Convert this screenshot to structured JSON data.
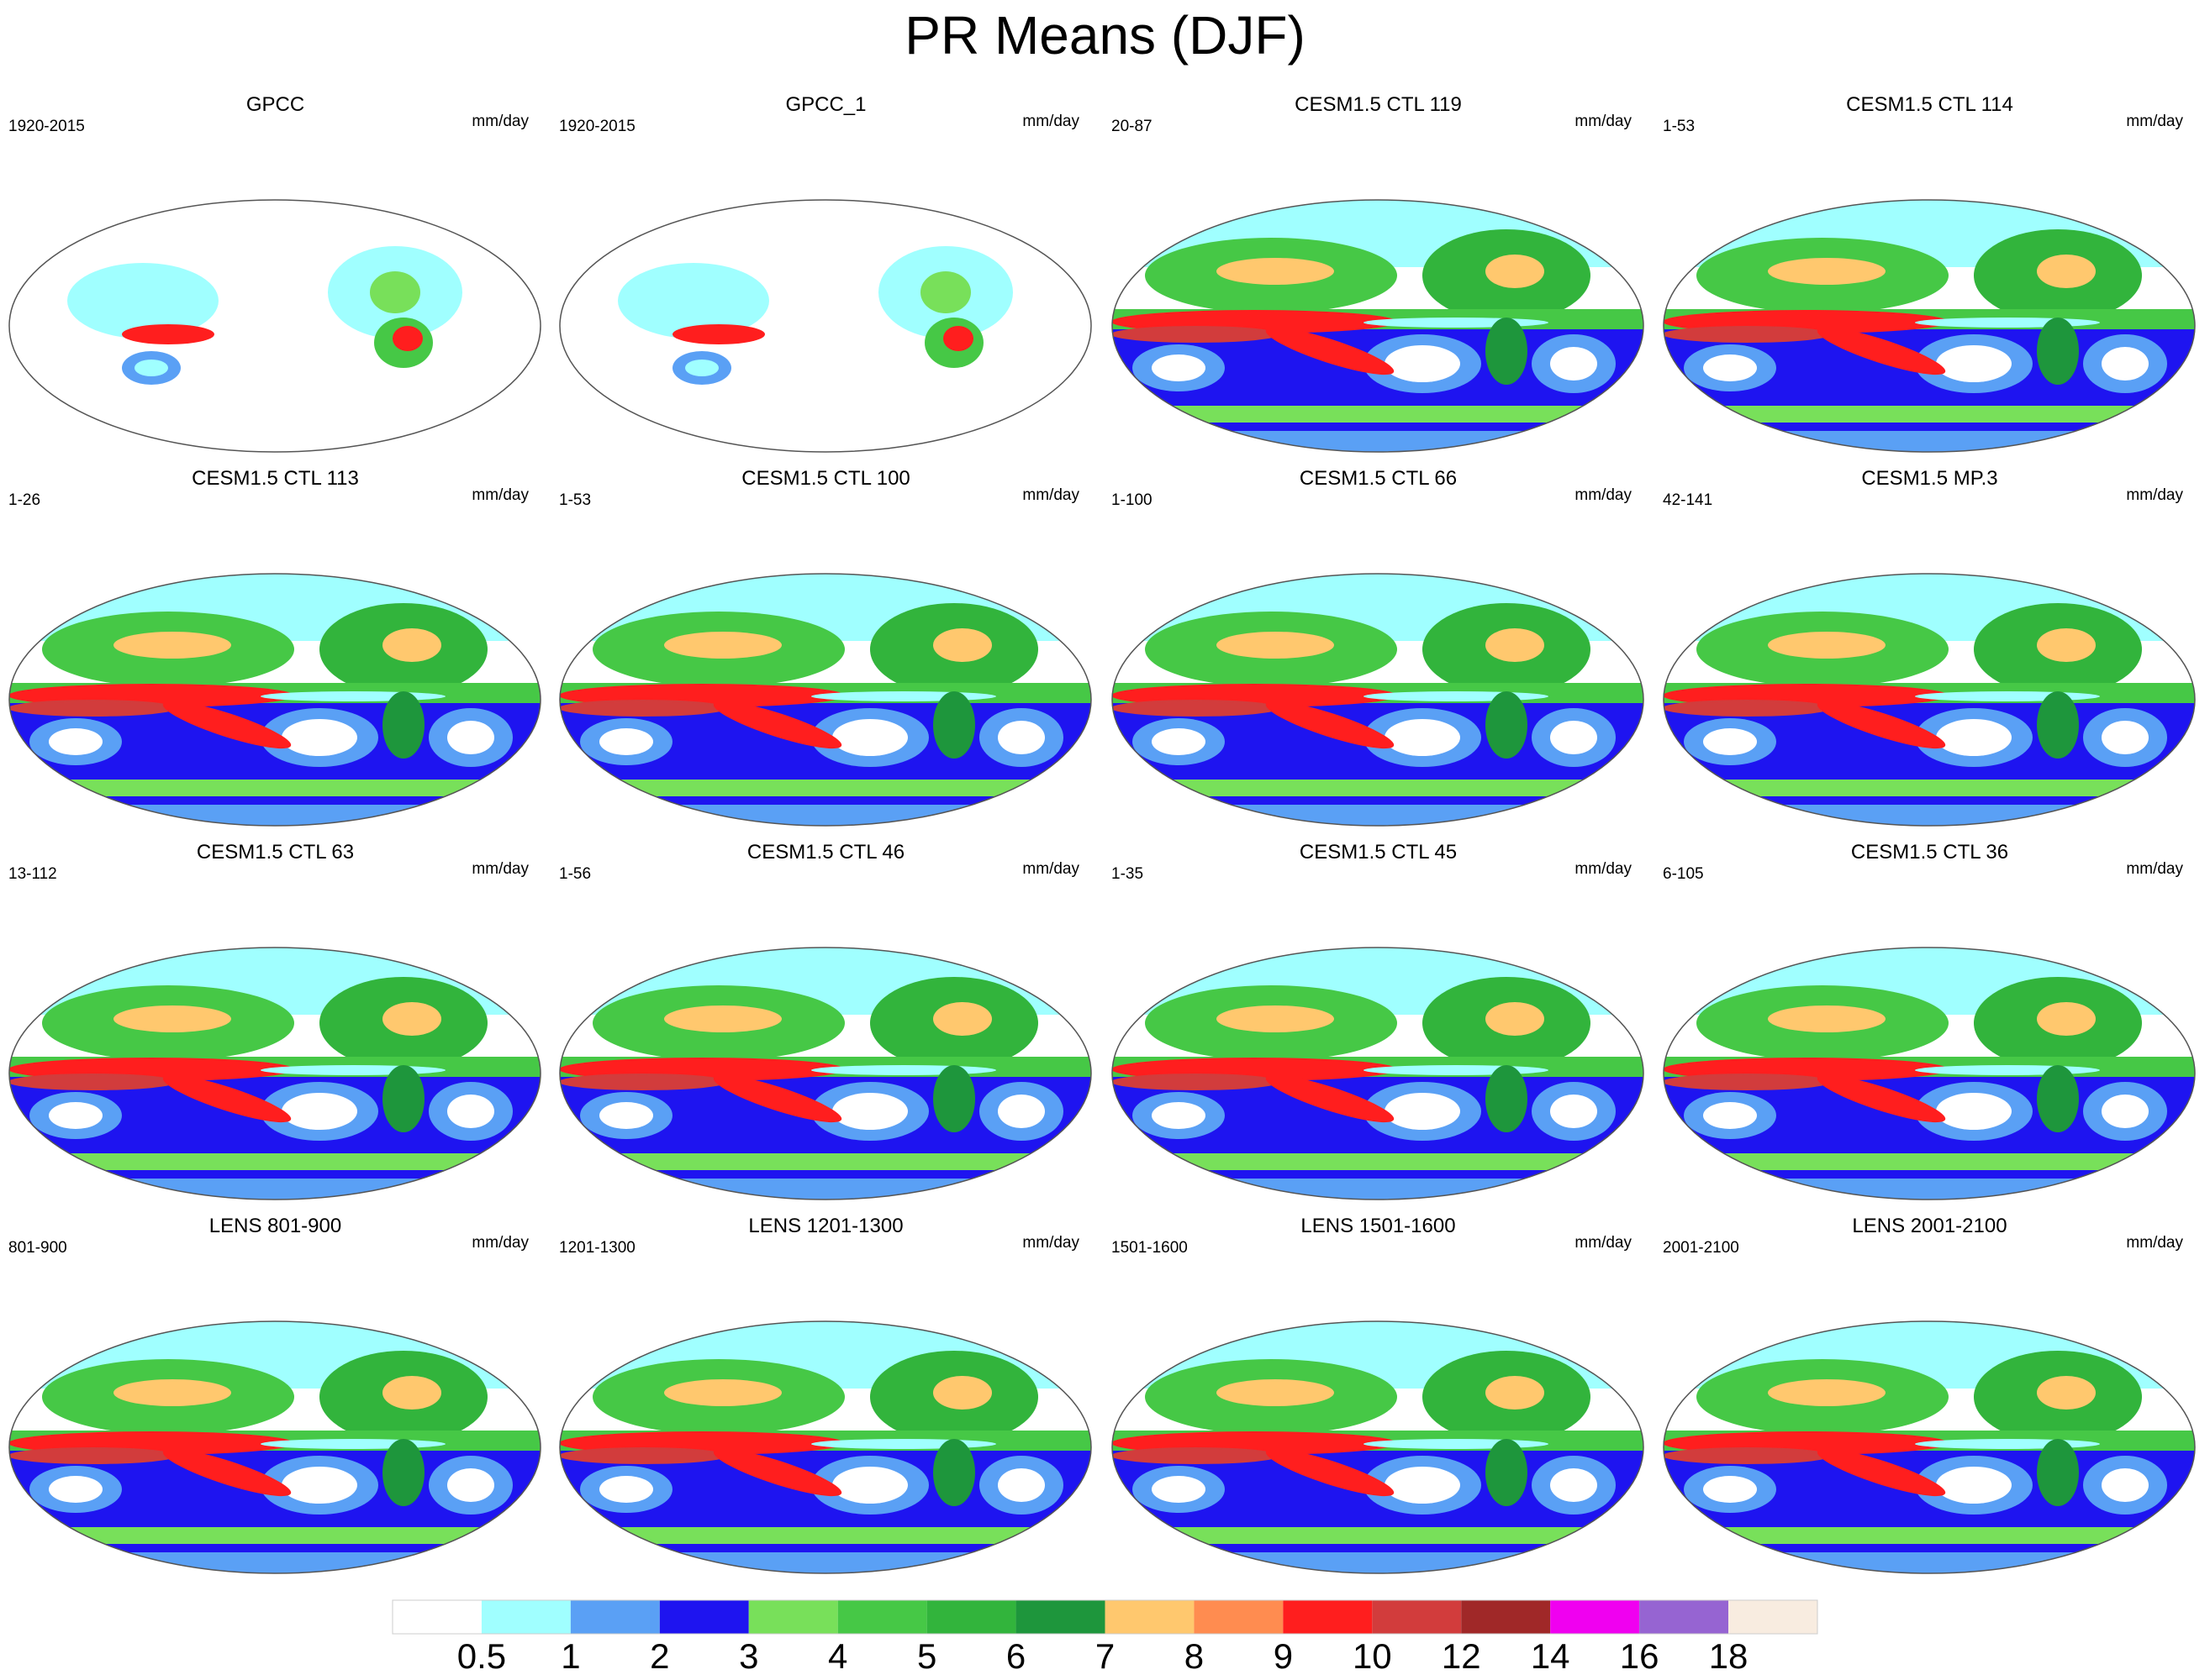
{
  "title": "PR Means (DJF)",
  "panels": [
    {
      "title": "GPCC",
      "period": "1920-2015",
      "units": "mm/day",
      "type": "obs"
    },
    {
      "title": "GPCC_1",
      "period": "1920-2015",
      "units": "mm/day",
      "type": "obs"
    },
    {
      "title": "CESM1.5 CTL 119",
      "period": "20-87",
      "units": "mm/day",
      "type": "model"
    },
    {
      "title": "CESM1.5 CTL 114",
      "period": "1-53",
      "units": "mm/day",
      "type": "model"
    },
    {
      "title": "CESM1.5 CTL 113",
      "period": "1-26",
      "units": "mm/day",
      "type": "model"
    },
    {
      "title": "CESM1.5 CTL 100",
      "period": "1-53",
      "units": "mm/day",
      "type": "model"
    },
    {
      "title": "CESM1.5 CTL 66",
      "period": "1-100",
      "units": "mm/day",
      "type": "model"
    },
    {
      "title": "CESM1.5 MP.3",
      "period": "42-141",
      "units": "mm/day",
      "type": "model"
    },
    {
      "title": "CESM1.5 CTL 63",
      "period": "13-112",
      "units": "mm/day",
      "type": "model"
    },
    {
      "title": "CESM1.5 CTL 46",
      "period": "1-56",
      "units": "mm/day",
      "type": "model"
    },
    {
      "title": "CESM1.5 CTL 45",
      "period": "1-35",
      "units": "mm/day",
      "type": "model"
    },
    {
      "title": "CESM1.5 CTL 36",
      "period": "6-105",
      "units": "mm/day",
      "type": "model"
    },
    {
      "title": "LENS 801-900",
      "period": "801-900",
      "units": "mm/day",
      "type": "model"
    },
    {
      "title": "LENS 1201-1300",
      "period": "1201-1300",
      "units": "mm/day",
      "type": "model"
    },
    {
      "title": "LENS 1501-1600",
      "period": "1501-1600",
      "units": "mm/day",
      "type": "model"
    },
    {
      "title": "LENS 2001-2100",
      "period": "2001-2100",
      "units": "mm/day",
      "type": "model"
    }
  ],
  "colorbar": {
    "labels": [
      "0.5",
      "1",
      "2",
      "3",
      "4",
      "5",
      "6",
      "7",
      "8",
      "9",
      "10",
      "12",
      "14",
      "16",
      "18"
    ],
    "colors": [
      "#ffffff",
      "#a0ffff",
      "#5aa0f5",
      "#1e14f0",
      "#78e05a",
      "#46c846",
      "#32b43c",
      "#1e963c",
      "#ffc86e",
      "#ff8c50",
      "#ff1e1e",
      "#d23c3c",
      "#a02828",
      "#f000f0",
      "#9664d2",
      "#f8ece0"
    ]
  }
}
